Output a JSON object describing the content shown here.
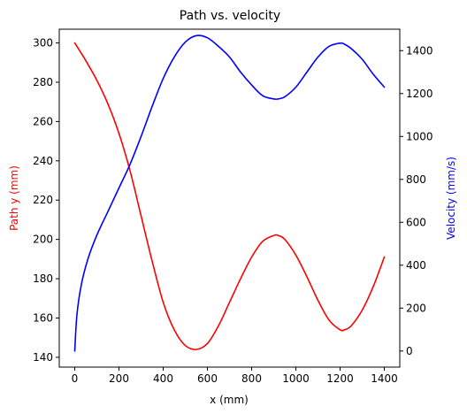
{
  "chart_data": {
    "type": "line",
    "title": "Path vs. velocity",
    "xlabel": "x (mm)",
    "ylabel_left": "Path y (mm)",
    "ylabel_right": "Velocity (mm/s)",
    "xlim": [
      -70,
      1470
    ],
    "ylim_left": [
      135,
      307
    ],
    "ylim_right": [
      -75,
      1500
    ],
    "x_ticks": [
      0,
      200,
      400,
      600,
      800,
      1000,
      1200,
      1400
    ],
    "y_left_ticks": [
      140,
      160,
      180,
      200,
      220,
      240,
      260,
      280,
      300
    ],
    "y_right_ticks": [
      0,
      200,
      400,
      600,
      800,
      1000,
      1200,
      1400
    ],
    "grid": false,
    "legend": "none",
    "colors": {
      "path": "#ff0000",
      "velocity": "#0000ff",
      "axes": "#000000"
    },
    "series": [
      {
        "axis": "left",
        "color": "#ff0000",
        "x": [
          0,
          50,
          100,
          150,
          200,
          250,
          300,
          350,
          400,
          450,
          500,
          550,
          600,
          650,
          700,
          750,
          800,
          850,
          900,
          920,
          950,
          1000,
          1050,
          1100,
          1150,
          1200,
          1220,
          1250,
          1300,
          1350,
          1400
        ],
        "values": [
          300,
          291,
          281,
          269,
          254,
          235,
          212,
          189,
          168,
          154,
          146,
          144,
          147,
          156,
          168,
          180,
          191,
          199,
          202,
          202,
          200,
          192,
          181,
          169,
          159,
          154,
          154,
          156,
          164,
          176,
          191
        ]
      },
      {
        "axis": "right",
        "color": "#0000ff",
        "x": [
          0,
          10,
          30,
          60,
          100,
          150,
          200,
          250,
          300,
          350,
          400,
          450,
          500,
          550,
          600,
          650,
          700,
          750,
          800,
          850,
          900,
          920,
          950,
          1000,
          1050,
          1100,
          1150,
          1200,
          1220,
          1250,
          1300,
          1350,
          1400
        ],
        "values": [
          0,
          170,
          310,
          430,
          540,
          650,
          760,
          870,
          1000,
          1140,
          1270,
          1370,
          1440,
          1470,
          1460,
          1420,
          1370,
          1300,
          1240,
          1190,
          1175,
          1175,
          1185,
          1230,
          1300,
          1370,
          1420,
          1435,
          1430,
          1410,
          1360,
          1290,
          1230
        ]
      }
    ]
  }
}
